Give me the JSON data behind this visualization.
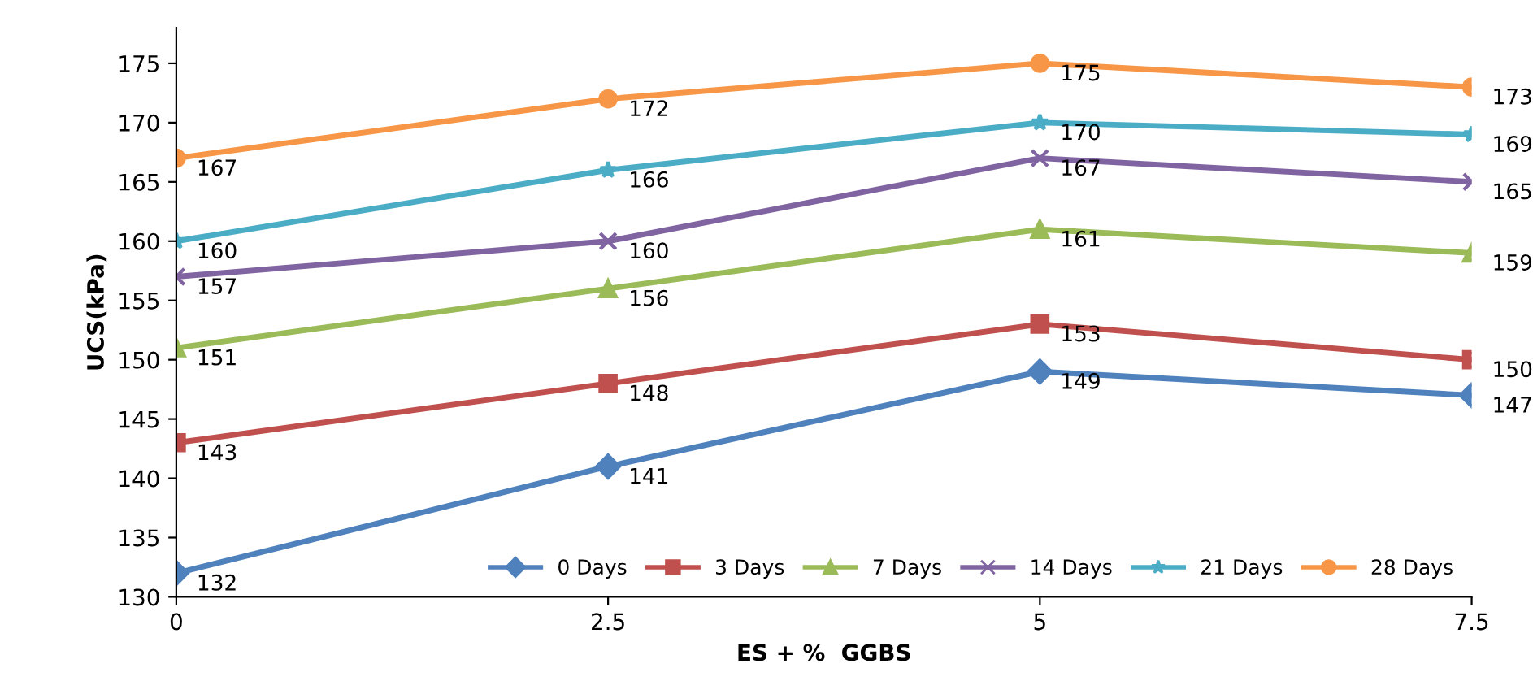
{
  "chart_data": {
    "type": "line",
    "xlabel": "ES + %  GGBS",
    "ylabel": "UCS(kPa)",
    "x": [
      0,
      2.5,
      5,
      7.5
    ],
    "xlim": [
      0,
      7.5
    ],
    "xticks": [
      0,
      2.5,
      5,
      7.5
    ],
    "ylim": [
      130,
      178
    ],
    "yticks": [
      130,
      135,
      140,
      145,
      150,
      155,
      160,
      165,
      170,
      175
    ],
    "grid": false,
    "legend": "bottom right",
    "data_labels": true,
    "line_style": "solid",
    "series": [
      {
        "name": "0 Days",
        "color": "#4f81bd",
        "marker": "diamond",
        "values": [
          132,
          141,
          149,
          147
        ]
      },
      {
        "name": "3 Days",
        "color": "#c0504d",
        "marker": "square",
        "values": [
          143,
          148,
          153,
          150
        ]
      },
      {
        "name": "7 Days",
        "color": "#9bbb59",
        "marker": "triangle",
        "values": [
          151,
          156,
          161,
          159
        ]
      },
      {
        "name": "14 Days",
        "color": "#8064a2",
        "marker": "cross",
        "values": [
          157,
          160,
          167,
          165
        ]
      },
      {
        "name": "21 Days",
        "color": "#4bacc6",
        "marker": "star",
        "values": [
          160,
          166,
          170,
          169
        ]
      },
      {
        "name": "28 Days",
        "color": "#f79646",
        "marker": "circle",
        "values": [
          167,
          172,
          175,
          173
        ]
      }
    ]
  }
}
